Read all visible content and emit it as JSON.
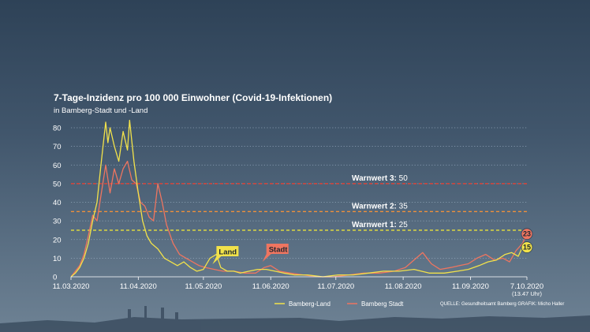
{
  "chart_data": {
    "type": "line",
    "title": "7-Tage-Inzidenz pro 100 000 Einwohner (Covid-19-Infektionen)",
    "subtitle": "in Bamberg-Stadt und -Land",
    "x_start": "2020-03-11",
    "x_end": "2020-10-07",
    "x_ticks": [
      {
        "date": "2020-03-11",
        "label": "11.03.2020"
      },
      {
        "date": "2020-04-11",
        "label": "11.04.2020"
      },
      {
        "date": "2020-05-11",
        "label": "11.05.2020"
      },
      {
        "date": "2020-06-11",
        "label": "11.06.2020"
      },
      {
        "date": "2020-07-11",
        "label": "11.07.2020"
      },
      {
        "date": "2020-08-11",
        "label": "11.08.2020"
      },
      {
        "date": "2020-09-11",
        "label": "11.09.2020"
      },
      {
        "date": "2020-10-07",
        "label": "7.10.2020"
      }
    ],
    "last_tick_note": "(13.47 Uhr)",
    "ylim": [
      0,
      85
    ],
    "y_ticks": [
      0,
      10,
      20,
      30,
      40,
      50,
      60,
      70,
      80
    ],
    "thresholds": [
      {
        "name": "Warnwert 3:",
        "value": 50,
        "label": "50",
        "color": "#d9453a"
      },
      {
        "name": "Warnwert 2:",
        "value": 35,
        "label": "35",
        "color": "#f0903a"
      },
      {
        "name": "Warnwert 1:",
        "value": 25,
        "label": "25",
        "color": "#e8e23a"
      }
    ],
    "series": [
      {
        "name": "Bamberg-Land",
        "callout": "Land",
        "color": "#f2e24a",
        "end_value": "15",
        "points": [
          [
            "2020-03-11",
            0
          ],
          [
            "2020-03-13",
            2
          ],
          [
            "2020-03-15",
            5
          ],
          [
            "2020-03-17",
            10
          ],
          [
            "2020-03-19",
            18
          ],
          [
            "2020-03-21",
            30
          ],
          [
            "2020-03-23",
            40
          ],
          [
            "2020-03-25",
            62
          ],
          [
            "2020-03-27",
            83
          ],
          [
            "2020-03-28",
            72
          ],
          [
            "2020-03-29",
            80
          ],
          [
            "2020-03-31",
            70
          ],
          [
            "2020-04-02",
            62
          ],
          [
            "2020-04-04",
            78
          ],
          [
            "2020-04-06",
            68
          ],
          [
            "2020-04-07",
            84
          ],
          [
            "2020-04-09",
            62
          ],
          [
            "2020-04-11",
            45
          ],
          [
            "2020-04-13",
            30
          ],
          [
            "2020-04-15",
            22
          ],
          [
            "2020-04-17",
            18
          ],
          [
            "2020-04-20",
            15
          ],
          [
            "2020-04-23",
            10
          ],
          [
            "2020-04-26",
            8
          ],
          [
            "2020-04-29",
            6
          ],
          [
            "2020-05-02",
            8
          ],
          [
            "2020-05-05",
            5
          ],
          [
            "2020-05-08",
            3
          ],
          [
            "2020-05-11",
            4
          ],
          [
            "2020-05-14",
            10
          ],
          [
            "2020-05-17",
            12
          ],
          [
            "2020-05-19",
            5
          ],
          [
            "2020-05-22",
            3
          ],
          [
            "2020-05-25",
            3
          ],
          [
            "2020-05-28",
            2
          ],
          [
            "2020-06-01",
            3
          ],
          [
            "2020-06-05",
            4
          ],
          [
            "2020-06-09",
            4
          ],
          [
            "2020-06-13",
            3
          ],
          [
            "2020-06-17",
            2
          ],
          [
            "2020-06-22",
            1
          ],
          [
            "2020-06-28",
            1
          ],
          [
            "2020-07-05",
            0
          ],
          [
            "2020-07-12",
            1
          ],
          [
            "2020-07-19",
            1
          ],
          [
            "2020-07-26",
            2
          ],
          [
            "2020-08-02",
            3
          ],
          [
            "2020-08-09",
            3
          ],
          [
            "2020-08-16",
            4
          ],
          [
            "2020-08-23",
            2
          ],
          [
            "2020-08-30",
            2
          ],
          [
            "2020-09-05",
            3
          ],
          [
            "2020-09-10",
            4
          ],
          [
            "2020-09-15",
            6
          ],
          [
            "2020-09-19",
            8
          ],
          [
            "2020-09-23",
            9
          ],
          [
            "2020-09-27",
            12
          ],
          [
            "2020-09-30",
            13
          ],
          [
            "2020-10-03",
            11
          ],
          [
            "2020-10-05",
            16
          ],
          [
            "2020-10-07",
            15
          ]
        ]
      },
      {
        "name": "Bamberg Stadt",
        "callout": "Stadt",
        "color": "#ee7560",
        "end_value": "23",
        "points": [
          [
            "2020-03-11",
            0
          ],
          [
            "2020-03-13",
            3
          ],
          [
            "2020-03-15",
            6
          ],
          [
            "2020-03-17",
            12
          ],
          [
            "2020-03-19",
            22
          ],
          [
            "2020-03-21",
            33
          ],
          [
            "2020-03-23",
            30
          ],
          [
            "2020-03-25",
            45
          ],
          [
            "2020-03-27",
            60
          ],
          [
            "2020-03-29",
            45
          ],
          [
            "2020-03-31",
            58
          ],
          [
            "2020-04-02",
            50
          ],
          [
            "2020-04-04",
            58
          ],
          [
            "2020-04-06",
            62
          ],
          [
            "2020-04-08",
            52
          ],
          [
            "2020-04-10",
            50
          ],
          [
            "2020-04-12",
            40
          ],
          [
            "2020-04-14",
            38
          ],
          [
            "2020-04-16",
            32
          ],
          [
            "2020-04-18",
            30
          ],
          [
            "2020-04-20",
            50
          ],
          [
            "2020-04-22",
            40
          ],
          [
            "2020-04-24",
            28
          ],
          [
            "2020-04-27",
            18
          ],
          [
            "2020-04-30",
            12
          ],
          [
            "2020-05-03",
            10
          ],
          [
            "2020-05-06",
            8
          ],
          [
            "2020-05-09",
            6
          ],
          [
            "2020-05-12",
            5
          ],
          [
            "2020-05-16",
            4
          ],
          [
            "2020-05-20",
            3
          ],
          [
            "2020-05-25",
            3
          ],
          [
            "2020-05-30",
            2
          ],
          [
            "2020-06-04",
            2
          ],
          [
            "2020-06-08",
            5
          ],
          [
            "2020-06-11",
            6
          ],
          [
            "2020-06-15",
            3
          ],
          [
            "2020-06-20",
            2
          ],
          [
            "2020-06-26",
            1
          ],
          [
            "2020-07-03",
            0
          ],
          [
            "2020-07-10",
            0
          ],
          [
            "2020-07-17",
            1
          ],
          [
            "2020-07-24",
            2
          ],
          [
            "2020-07-31",
            2
          ],
          [
            "2020-08-07",
            3
          ],
          [
            "2020-08-12",
            5
          ],
          [
            "2020-08-17",
            10
          ],
          [
            "2020-08-20",
            13
          ],
          [
            "2020-08-24",
            7
          ],
          [
            "2020-08-28",
            4
          ],
          [
            "2020-09-02",
            5
          ],
          [
            "2020-09-06",
            6
          ],
          [
            "2020-09-10",
            7
          ],
          [
            "2020-09-14",
            10
          ],
          [
            "2020-09-18",
            12
          ],
          [
            "2020-09-22",
            9
          ],
          [
            "2020-09-26",
            10
          ],
          [
            "2020-09-29",
            8
          ],
          [
            "2020-10-02",
            14
          ],
          [
            "2020-10-05",
            18
          ],
          [
            "2020-10-07",
            23
          ]
        ]
      }
    ],
    "legend": [
      "Bamberg-Land",
      "Bamberg Stadt"
    ],
    "source": "QUELLE: Gesundheitsamt Bamberg   GRAFIK: Micho Haller",
    "grid": true,
    "grid_color": "#9fb2c6"
  }
}
